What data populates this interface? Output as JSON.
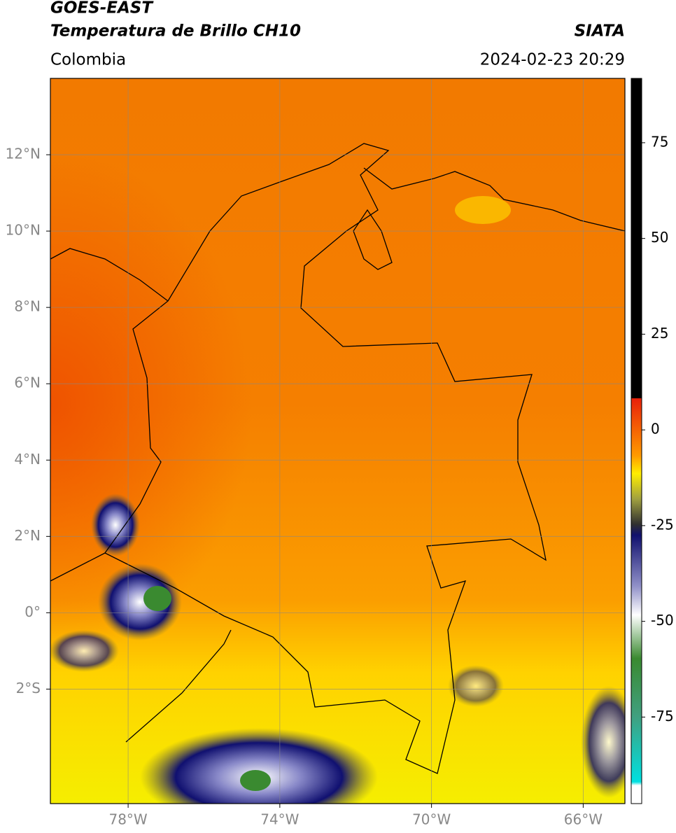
{
  "header": {
    "title": "GOES-EAST",
    "subtitle": "Temperatura de Brillo CH10",
    "region": "Colombia",
    "source": "SIATA",
    "datetime": "2024-02-23 20:29"
  },
  "map": {
    "xlim": [
      -80.05,
      -64.9
    ],
    "ylim": [
      -5,
      14
    ],
    "xticks": [
      {
        "value": -78,
        "label": "78°W"
      },
      {
        "value": -74,
        "label": "74°W"
      },
      {
        "value": -70,
        "label": "70°W"
      },
      {
        "value": -66,
        "label": "66°W"
      }
    ],
    "yticks": [
      {
        "value": 12,
        "label": "12°N"
      },
      {
        "value": 10,
        "label": "10°N"
      },
      {
        "value": 8,
        "label": "8°N"
      },
      {
        "value": 6,
        "label": "6°N"
      },
      {
        "value": 4,
        "label": "4°N"
      },
      {
        "value": 2,
        "label": "2°N"
      },
      {
        "value": 0,
        "label": "0°"
      },
      {
        "value": -2,
        "label": "2°S"
      }
    ],
    "grid": true
  },
  "colorbar": {
    "lim": [
      -97.6,
      91.8
    ],
    "ticks": [
      75,
      50,
      25,
      0,
      -25,
      -50,
      -75
    ]
  }
}
